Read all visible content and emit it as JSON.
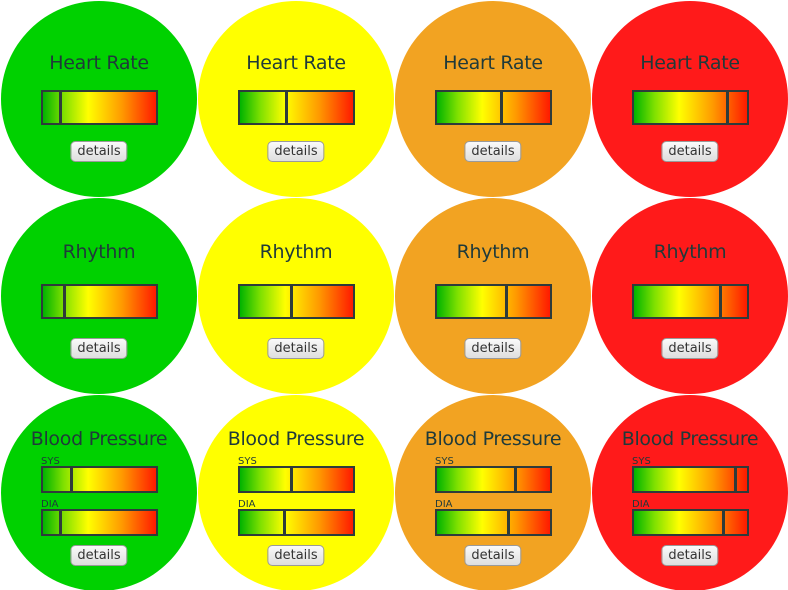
{
  "details_label": "details",
  "sys_label": "SYS",
  "dia_label": "DIA",
  "status_colors": [
    "#00d100",
    "#ffff00",
    "#f2a322",
    "#ff1a1a"
  ],
  "rows": [
    {
      "title": "Heart Rate",
      "columns": [
        {
          "level": 0.15
        },
        {
          "level": 0.41
        },
        {
          "level": 0.57
        },
        {
          "level": 0.82
        }
      ]
    },
    {
      "title": "Rhythm",
      "columns": [
        {
          "level": 0.19
        },
        {
          "level": 0.45
        },
        {
          "level": 0.61
        },
        {
          "level": 0.76
        }
      ]
    },
    {
      "title": "Blood Pressure",
      "columns": [
        {
          "sys": 0.25,
          "dia": 0.15
        },
        {
          "sys": 0.45,
          "dia": 0.39
        },
        {
          "sys": 0.69,
          "dia": 0.63
        },
        {
          "sys": 0.89,
          "dia": 0.79
        }
      ]
    }
  ]
}
